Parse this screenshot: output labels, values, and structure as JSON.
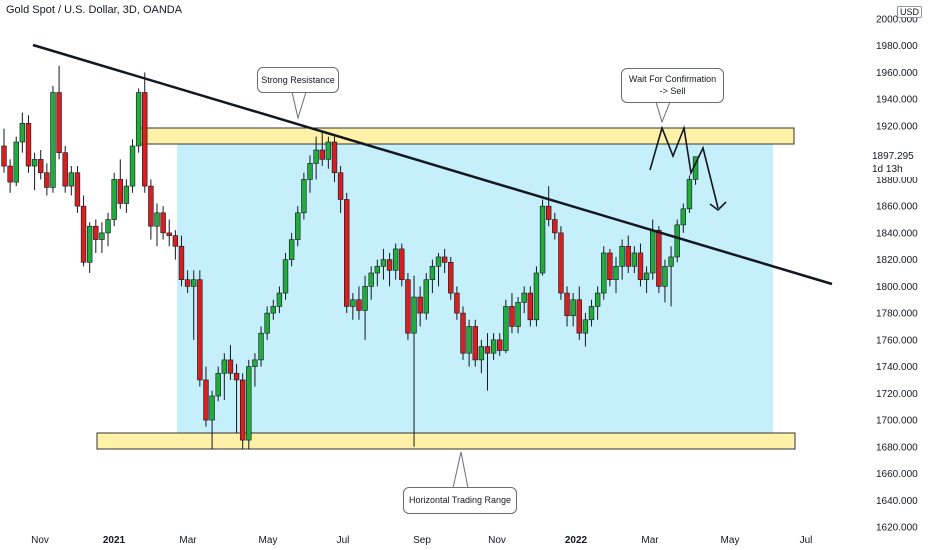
{
  "header": {
    "title": "Gold Spot / U.S. Dollar, 3D, OANDA",
    "currency": "USD"
  },
  "price_tag": {
    "value": "1897.295",
    "countdown": "1d 13h"
  },
  "annotations": {
    "strong_resistance": "Strong Resistance",
    "wait_confirmation_1": "Wait For Confirmation",
    "wait_confirmation_2": "-> Sell",
    "horizontal_range": "Horizontal Trading Range"
  },
  "colors": {
    "up": "#22ab3c",
    "down": "#d62020",
    "resistance_zone": "#fff2a8",
    "range_box": "#c5f0fb"
  },
  "chart_data": {
    "type": "candlestick",
    "title": "Gold Spot / U.S. Dollar, 3D, OANDA",
    "y_axis": {
      "range": [
        1620,
        2000
      ],
      "ticks": [
        "2000.000",
        "1980.000",
        "1960.000",
        "1940.000",
        "1920.000",
        "1900.000",
        "1880.000",
        "1860.000",
        "1840.000",
        "1820.000",
        "1800.000",
        "1780.000",
        "1760.000",
        "1740.000",
        "1720.000",
        "1700.000",
        "1680.000",
        "1660.000",
        "1640.000",
        "1620.000"
      ]
    },
    "x_axis": {
      "labels": [
        {
          "text": "Nov",
          "bold": false
        },
        {
          "text": "2021",
          "bold": true
        },
        {
          "text": "Mar",
          "bold": false
        },
        {
          "text": "May",
          "bold": false
        },
        {
          "text": "Jul",
          "bold": false
        },
        {
          "text": "Sep",
          "bold": false
        },
        {
          "text": "Nov",
          "bold": false
        },
        {
          "text": "2022",
          "bold": true
        },
        {
          "text": "Mar",
          "bold": false
        },
        {
          "text": "May",
          "bold": false
        },
        {
          "text": "Jul",
          "bold": false
        }
      ]
    },
    "candles": [
      [
        1905,
        1918,
        1885,
        1890
      ],
      [
        1890,
        1895,
        1870,
        1878
      ],
      [
        1878,
        1912,
        1875,
        1908
      ],
      [
        1908,
        1930,
        1900,
        1922
      ],
      [
        1922,
        1928,
        1885,
        1890
      ],
      [
        1890,
        1900,
        1872,
        1895
      ],
      [
        1895,
        1902,
        1880,
        1885
      ],
      [
        1885,
        1892,
        1868,
        1874
      ],
      [
        1874,
        1950,
        1870,
        1945
      ],
      [
        1945,
        1965,
        1895,
        1900
      ],
      [
        1900,
        1905,
        1870,
        1875
      ],
      [
        1875,
        1890,
        1868,
        1885
      ],
      [
        1885,
        1890,
        1855,
        1860
      ],
      [
        1860,
        1868,
        1815,
        1818
      ],
      [
        1818,
        1848,
        1810,
        1845
      ],
      [
        1845,
        1850,
        1825,
        1835
      ],
      [
        1835,
        1848,
        1825,
        1840
      ],
      [
        1840,
        1855,
        1830,
        1850
      ],
      [
        1850,
        1885,
        1845,
        1880
      ],
      [
        1880,
        1895,
        1858,
        1862
      ],
      [
        1862,
        1880,
        1855,
        1875
      ],
      [
        1875,
        1910,
        1870,
        1905
      ],
      [
        1905,
        1948,
        1900,
        1945
      ],
      [
        1945,
        1960,
        1870,
        1875
      ],
      [
        1875,
        1880,
        1835,
        1845
      ],
      [
        1845,
        1862,
        1830,
        1855
      ],
      [
        1855,
        1860,
        1835,
        1840
      ],
      [
        1840,
        1850,
        1830,
        1838
      ],
      [
        1838,
        1842,
        1820,
        1830
      ],
      [
        1830,
        1838,
        1800,
        1805
      ],
      [
        1805,
        1812,
        1795,
        1800
      ],
      [
        1800,
        1812,
        1760,
        1805
      ],
      [
        1805,
        1812,
        1725,
        1730
      ],
      [
        1730,
        1740,
        1695,
        1700
      ],
      [
        1700,
        1722,
        1678,
        1718
      ],
      [
        1718,
        1740,
        1714,
        1735
      ],
      [
        1735,
        1750,
        1715,
        1745
      ],
      [
        1745,
        1756,
        1730,
        1735
      ],
      [
        1735,
        1742,
        1690,
        1730
      ],
      [
        1730,
        1735,
        1678,
        1685
      ],
      [
        1685,
        1745,
        1678,
        1740
      ],
      [
        1740,
        1750,
        1725,
        1745
      ],
      [
        1745,
        1770,
        1740,
        1765
      ],
      [
        1765,
        1785,
        1760,
        1780
      ],
      [
        1780,
        1790,
        1775,
        1785
      ],
      [
        1785,
        1800,
        1780,
        1795
      ],
      [
        1795,
        1825,
        1790,
        1820
      ],
      [
        1820,
        1840,
        1815,
        1835
      ],
      [
        1835,
        1860,
        1830,
        1855
      ],
      [
        1855,
        1885,
        1850,
        1880
      ],
      [
        1880,
        1898,
        1870,
        1892
      ],
      [
        1892,
        1912,
        1880,
        1902
      ],
      [
        1902,
        1916,
        1890,
        1895
      ],
      [
        1895,
        1912,
        1888,
        1908
      ],
      [
        1908,
        1912,
        1878,
        1885
      ],
      [
        1885,
        1890,
        1855,
        1865
      ],
      [
        1865,
        1870,
        1780,
        1785
      ],
      [
        1785,
        1795,
        1775,
        1790
      ],
      [
        1790,
        1800,
        1775,
        1782
      ],
      [
        1782,
        1808,
        1760,
        1800
      ],
      [
        1800,
        1815,
        1790,
        1810
      ],
      [
        1810,
        1820,
        1800,
        1815
      ],
      [
        1815,
        1828,
        1805,
        1820
      ],
      [
        1820,
        1825,
        1800,
        1812
      ],
      [
        1812,
        1832,
        1805,
        1828
      ],
      [
        1828,
        1832,
        1800,
        1805
      ],
      [
        1805,
        1810,
        1760,
        1765
      ],
      [
        1765,
        1808,
        1680,
        1792
      ],
      [
        1792,
        1800,
        1770,
        1780
      ],
      [
        1780,
        1810,
        1775,
        1805
      ],
      [
        1805,
        1820,
        1795,
        1815
      ],
      [
        1815,
        1825,
        1800,
        1822
      ],
      [
        1822,
        1828,
        1810,
        1818
      ],
      [
        1818,
        1822,
        1790,
        1795
      ],
      [
        1795,
        1800,
        1775,
        1780
      ],
      [
        1780,
        1785,
        1745,
        1750
      ],
      [
        1750,
        1775,
        1740,
        1770
      ],
      [
        1770,
        1775,
        1740,
        1745
      ],
      [
        1745,
        1760,
        1735,
        1755
      ],
      [
        1755,
        1765,
        1722,
        1750
      ],
      [
        1750,
        1765,
        1745,
        1760
      ],
      [
        1760,
        1765,
        1748,
        1752
      ],
      [
        1752,
        1790,
        1750,
        1785
      ],
      [
        1785,
        1795,
        1765,
        1770
      ],
      [
        1770,
        1792,
        1765,
        1788
      ],
      [
        1788,
        1800,
        1780,
        1795
      ],
      [
        1795,
        1800,
        1770,
        1775
      ],
      [
        1775,
        1815,
        1770,
        1810
      ],
      [
        1810,
        1865,
        1808,
        1860
      ],
      [
        1860,
        1875,
        1845,
        1850
      ],
      [
        1850,
        1855,
        1835,
        1840
      ],
      [
        1840,
        1845,
        1790,
        1795
      ],
      [
        1795,
        1800,
        1770,
        1778
      ],
      [
        1778,
        1795,
        1770,
        1790
      ],
      [
        1790,
        1800,
        1760,
        1765
      ],
      [
        1765,
        1780,
        1755,
        1775
      ],
      [
        1775,
        1790,
        1770,
        1785
      ],
      [
        1785,
        1800,
        1775,
        1795
      ],
      [
        1795,
        1830,
        1790,
        1825
      ],
      [
        1825,
        1828,
        1800,
        1805
      ],
      [
        1805,
        1822,
        1795,
        1815
      ],
      [
        1815,
        1835,
        1805,
        1830
      ],
      [
        1830,
        1838,
        1810,
        1815
      ],
      [
        1815,
        1830,
        1810,
        1825
      ],
      [
        1825,
        1832,
        1800,
        1805
      ],
      [
        1805,
        1815,
        1795,
        1810
      ],
      [
        1810,
        1850,
        1805,
        1842
      ],
      [
        1842,
        1845,
        1795,
        1800
      ],
      [
        1800,
        1820,
        1788,
        1815
      ],
      [
        1815,
        1830,
        1785,
        1822
      ],
      [
        1822,
        1850,
        1818,
        1846
      ],
      [
        1846,
        1862,
        1840,
        1858
      ],
      [
        1858,
        1883,
        1855,
        1880
      ],
      [
        1880,
        1897,
        1876,
        1897
      ]
    ],
    "series": [
      {
        "name": "",
        "type": "trendline",
        "points": [
          [
            0,
            1982
          ],
          [
            129,
            1800
          ]
        ]
      },
      {
        "name": "",
        "type": "zone",
        "label": "Strong Resistance",
        "y_range": [
          1903,
          1915
        ]
      },
      {
        "name": "",
        "type": "zone",
        "label": "Horizontal Trading Range",
        "y_range": [
          1678,
          1690
        ]
      }
    ],
    "grid": false,
    "legend": "none"
  }
}
